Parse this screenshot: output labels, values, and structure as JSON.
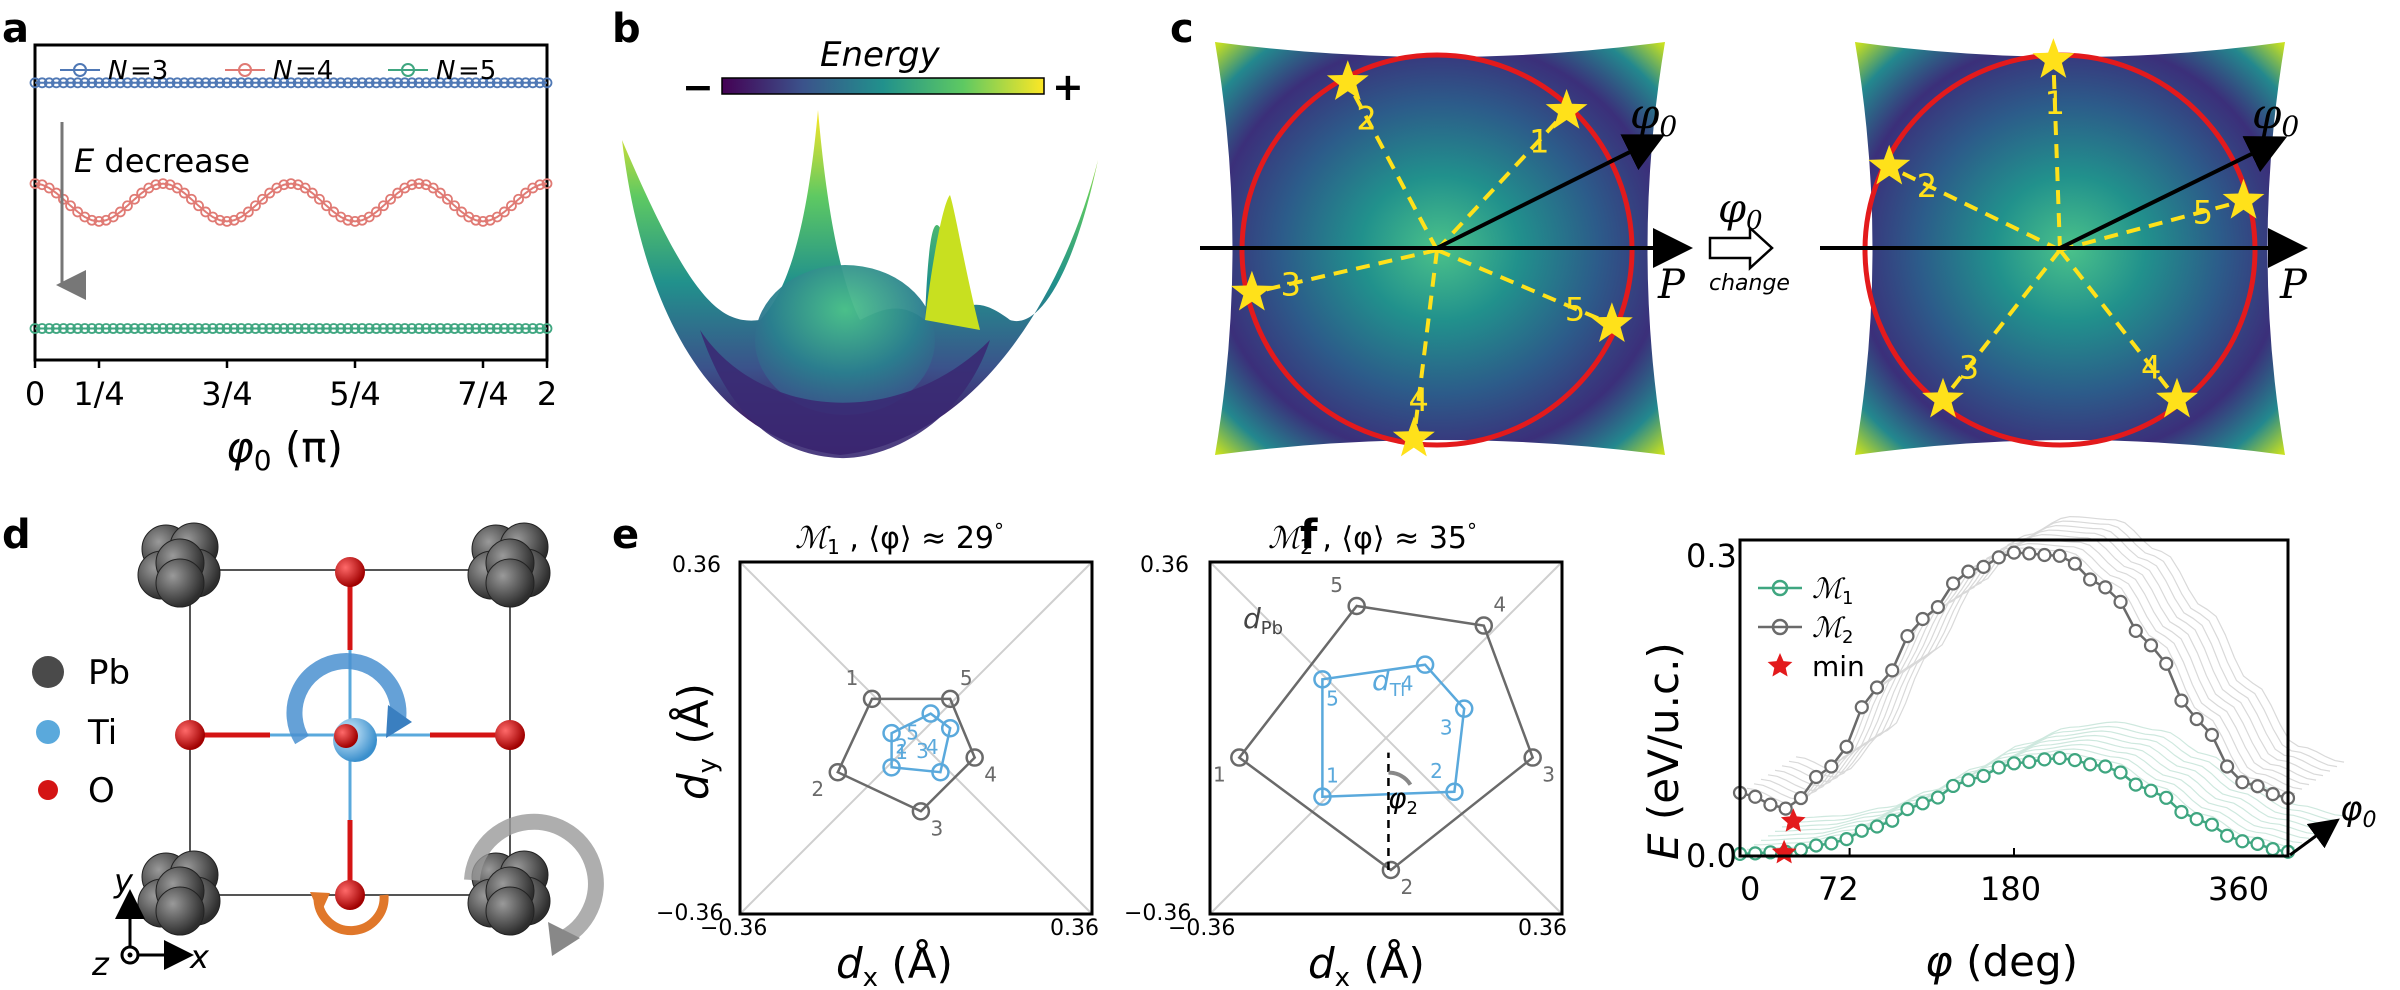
{
  "panel_labels": [
    "a",
    "b",
    "c",
    "d",
    "e",
    "f"
  ],
  "colors": {
    "n3": "#4f78b5",
    "n4": "#e07a74",
    "n5": "#3fa680",
    "m1": "#3fa680",
    "m2": "#6a6a6a",
    "red": "#e31a1c",
    "star": "#ffe11a",
    "ti": "#5aa9dc",
    "pb": "#4a4a4a",
    "o": "#d41414",
    "dash": "#ffe11a"
  },
  "panel_a": {
    "legend": [
      {
        "prefix": "N",
        "label": "=3"
      },
      {
        "prefix": "N",
        "label": "=4"
      },
      {
        "prefix": "N",
        "label": "=5"
      }
    ],
    "arrow_label_e": "E",
    "arrow_label": " decrease",
    "xlabel": "φ",
    "xlabel_sub": "0",
    "xlabel_unit": " (π)",
    "xticks": [
      "0",
      "1/4",
      "3/4",
      "5/4",
      "7/4",
      "2"
    ]
  },
  "chart_data": [
    {
      "type": "line",
      "panel": "a",
      "title": "",
      "xlabel": "φ0 (π)",
      "ylabel": "",
      "xlim": [
        0,
        2
      ],
      "ylim": [
        0,
        1
      ],
      "series": [
        {
          "name": "N=3",
          "form": "constant",
          "value": 0.88
        },
        {
          "name": "N=4",
          "form": "cosine",
          "mean": 0.5,
          "amplitude": 0.06,
          "periods": 4
        },
        {
          "name": "N=5",
          "form": "constant",
          "value": 0.1
        }
      ]
    },
    {
      "type": "scatter",
      "panel": "e-left",
      "title": "M1, ⟨φ⟩≈29°",
      "xlabel": "dx (Å)",
      "ylabel": "dy (Å)",
      "xlim": [
        -0.36,
        0.36
      ],
      "ylim": [
        -0.36,
        0.36
      ],
      "series": [
        {
          "name": "dPb",
          "labels": [
            "1",
            "2",
            "3",
            "4",
            "5"
          ],
          "x": [
            -0.09,
            -0.16,
            0.01,
            0.12,
            0.07
          ],
          "y": [
            0.08,
            -0.07,
            -0.15,
            -0.04,
            0.08
          ]
        },
        {
          "name": "dTi",
          "labels": [
            "1",
            "2",
            "3",
            "4",
            "5"
          ],
          "x": [
            -0.05,
            -0.05,
            0.05,
            0.07,
            0.03
          ],
          "y": [
            0.01,
            -0.06,
            -0.07,
            0.02,
            0.05
          ]
        }
      ]
    },
    {
      "type": "scatter",
      "panel": "e-right",
      "title": "M2, ⟨φ⟩≈35°",
      "xlabel": "dx (Å)",
      "ylabel": "dy (Å)",
      "xlim": [
        -0.36,
        0.36
      ],
      "ylim": [
        -0.36,
        0.36
      ],
      "series": [
        {
          "name": "dPb",
          "labels": [
            "1",
            "2",
            "3",
            "4",
            "5"
          ],
          "x": [
            -0.3,
            0.01,
            0.3,
            0.2,
            -0.06
          ],
          "y": [
            -0.04,
            -0.27,
            -0.04,
            0.23,
            0.27
          ]
        },
        {
          "name": "dTi",
          "labels": [
            "1",
            "2",
            "3",
            "4",
            "5"
          ],
          "x": [
            -0.13,
            0.14,
            0.16,
            0.08,
            -0.13
          ],
          "y": [
            -0.12,
            -0.11,
            0.06,
            0.15,
            0.12
          ]
        }
      ]
    },
    {
      "type": "line",
      "panel": "f",
      "title": "",
      "xlabel": "φ (deg)",
      "ylabel": "E (eV/u.c.)",
      "xlim": [
        0,
        360
      ],
      "ylim": [
        0,
        0.3
      ],
      "series": [
        {
          "name": "M1",
          "x": [
            0,
            30,
            60,
            90,
            120,
            150,
            180,
            210,
            240,
            270,
            300,
            330,
            360
          ],
          "y": [
            0.002,
            0.004,
            0.012,
            0.028,
            0.05,
            0.072,
            0.088,
            0.093,
            0.085,
            0.062,
            0.035,
            0.014,
            0.004
          ]
        },
        {
          "name": "M2",
          "x": [
            0,
            30,
            60,
            90,
            120,
            150,
            180,
            210,
            240,
            270,
            300,
            330,
            360
          ],
          "y": [
            0.06,
            0.045,
            0.085,
            0.16,
            0.225,
            0.27,
            0.288,
            0.285,
            0.255,
            0.2,
            0.13,
            0.07,
            0.055
          ]
        },
        {
          "name": "min",
          "x": [
            29,
            35
          ],
          "y": [
            0.003,
            0.033
          ]
        }
      ]
    }
  ],
  "panel_b": {
    "colorbar_title": "Energy",
    "minus": "−",
    "plus": "+"
  },
  "panel_c": {
    "phi": "φ",
    "phi_sub": "0",
    "p_label": "P",
    "change_phi": "φ",
    "change_sub": "0",
    "change_label": "change",
    "left_stars": [
      "1",
      "2",
      "3",
      "4",
      "5"
    ],
    "right_stars": [
      "1",
      "2",
      "3",
      "4",
      "5"
    ]
  },
  "panel_d": {
    "legend": [
      {
        "label": "Pb"
      },
      {
        "label": "Ti"
      },
      {
        "label": "O"
      }
    ],
    "axis_y": "y",
    "axis_x": "x",
    "axis_z": "z"
  },
  "panel_e": {
    "left_title_m": "ℳ",
    "left_title_sub": "1",
    "left_title_rest": " , ⟨φ⟩ ≈ 29",
    "right_title_m": "ℳ",
    "right_title_sub": "2",
    "right_title_rest": " , ⟨φ⟩ ≈ 35",
    "deg": "°",
    "tick_pos": "0.36",
    "tick_neg": "−0.36",
    "xlabel_d": "d",
    "xlabel_sub": "x",
    "xlabel_unit": " (Å)",
    "ylabel_d": "d",
    "ylabel_sub": "y",
    "ylabel_unit": " (Å)",
    "dpb": "d",
    "dpb_sub": "Pb",
    "dti": "d",
    "dti_sub": "Ti",
    "phi2": "φ",
    "phi2_sub": "2"
  },
  "panel_f": {
    "ylabel_e": "E",
    "ylabel_unit": " (eV/u.c.)",
    "xlabel_phi": "φ",
    "xlabel_unit": " (deg)",
    "yticks": [
      "0.0",
      "0.3"
    ],
    "xticks": [
      "0",
      "72",
      "180",
      "360"
    ],
    "legend": [
      {
        "m": "ℳ",
        "sub": "1"
      },
      {
        "m": "ℳ",
        "sub": "2"
      },
      {
        "label": "min"
      }
    ],
    "phi0": "φ",
    "phi0_sub": "0"
  }
}
